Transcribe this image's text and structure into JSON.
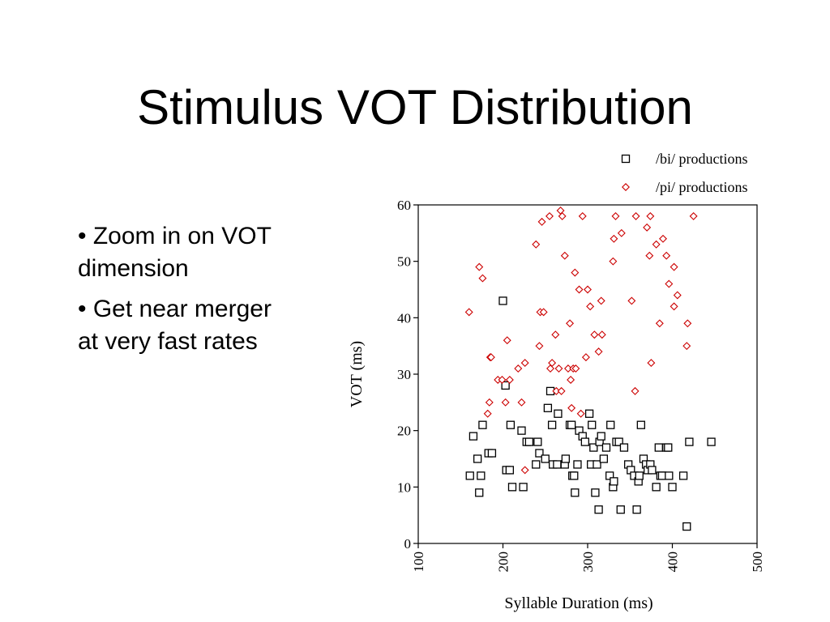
{
  "slide": {
    "title": "Stimulus VOT Distribution",
    "bullets": [
      "• Zoom in on VOT dimension",
      "• Get near merger at very fast rates"
    ]
  },
  "chart_data": {
    "type": "scatter",
    "xlabel": "Syllable Duration (ms)",
    "ylabel": "VOT (ms)",
    "xlim": [
      100,
      500
    ],
    "ylim": [
      0,
      60
    ],
    "xticks": [
      100,
      200,
      300,
      400,
      500
    ],
    "yticks": [
      0,
      10,
      20,
      30,
      40,
      50,
      60
    ],
    "grid": false,
    "legend_position": "top-right",
    "series": [
      {
        "name": "/bi/ productions",
        "marker": "square",
        "color": "#000000",
        "points": [
          [
            161,
            12
          ],
          [
            165,
            19
          ],
          [
            170,
            15
          ],
          [
            172,
            9
          ],
          [
            174,
            12
          ],
          [
            176,
            21
          ],
          [
            183,
            16
          ],
          [
            187,
            16
          ],
          [
            200,
            43
          ],
          [
            203,
            28
          ],
          [
            204,
            13
          ],
          [
            208,
            13
          ],
          [
            209,
            21
          ],
          [
            211,
            10
          ],
          [
            224,
            10
          ],
          [
            222,
            20
          ],
          [
            228,
            18
          ],
          [
            231,
            18
          ],
          [
            239,
            14
          ],
          [
            241,
            18
          ],
          [
            243,
            16
          ],
          [
            250,
            15
          ],
          [
            253,
            24
          ],
          [
            256,
            27
          ],
          [
            258,
            21
          ],
          [
            259,
            14
          ],
          [
            264,
            14
          ],
          [
            265,
            23
          ],
          [
            273,
            14
          ],
          [
            274,
            15
          ],
          [
            279,
            21
          ],
          [
            281,
            21
          ],
          [
            282,
            12
          ],
          [
            284,
            12
          ],
          [
            285,
            9
          ],
          [
            288,
            14
          ],
          [
            290,
            20
          ],
          [
            294,
            19
          ],
          [
            297,
            18
          ],
          [
            302,
            23
          ],
          [
            304,
            14
          ],
          [
            305,
            21
          ],
          [
            307,
            17
          ],
          [
            309,
            9
          ],
          [
            311,
            14
          ],
          [
            313,
            6
          ],
          [
            314,
            18
          ],
          [
            316,
            19
          ],
          [
            319,
            15
          ],
          [
            322,
            17
          ],
          [
            326,
            12
          ],
          [
            327,
            21
          ],
          [
            330,
            10
          ],
          [
            331,
            11
          ],
          [
            334,
            18
          ],
          [
            337,
            18
          ],
          [
            339,
            6
          ],
          [
            343,
            17
          ],
          [
            348,
            14
          ],
          [
            351,
            13
          ],
          [
            355,
            12
          ],
          [
            358,
            6
          ],
          [
            360,
            11
          ],
          [
            361,
            12
          ],
          [
            363,
            21
          ],
          [
            366,
            15
          ],
          [
            369,
            14
          ],
          [
            371,
            13
          ],
          [
            374,
            14
          ],
          [
            376,
            13
          ],
          [
            381,
            10
          ],
          [
            384,
            17
          ],
          [
            386,
            12
          ],
          [
            388,
            12
          ],
          [
            393,
            17
          ],
          [
            395,
            17
          ],
          [
            396,
            12
          ],
          [
            400,
            10
          ],
          [
            413,
            12
          ],
          [
            417,
            3
          ],
          [
            420,
            18
          ],
          [
            446,
            18
          ]
        ]
      },
      {
        "name": "/pi/ productions",
        "marker": "diamond",
        "color": "#cc0000",
        "points": [
          [
            160,
            41
          ],
          [
            172,
            49
          ],
          [
            176,
            47
          ],
          [
            182,
            23
          ],
          [
            184,
            25
          ],
          [
            185,
            33
          ],
          [
            186,
            33
          ],
          [
            194,
            29
          ],
          [
            199,
            29
          ],
          [
            203,
            25
          ],
          [
            205,
            36
          ],
          [
            208,
            29
          ],
          [
            218,
            31
          ],
          [
            222,
            25
          ],
          [
            226,
            32
          ],
          [
            226,
            13
          ],
          [
            239,
            53
          ],
          [
            243,
            35
          ],
          [
            244,
            41
          ],
          [
            246,
            57
          ],
          [
            248,
            41
          ],
          [
            255,
            58
          ],
          [
            256,
            31
          ],
          [
            258,
            32
          ],
          [
            262,
            37
          ],
          [
            263,
            27
          ],
          [
            266,
            31
          ],
          [
            268,
            59
          ],
          [
            269,
            27
          ],
          [
            270,
            58
          ],
          [
            273,
            51
          ],
          [
            277,
            31
          ],
          [
            279,
            39
          ],
          [
            280,
            29
          ],
          [
            281,
            24
          ],
          [
            283,
            31
          ],
          [
            285,
            48
          ],
          [
            286,
            31
          ],
          [
            290,
            45
          ],
          [
            292,
            23
          ],
          [
            294,
            58
          ],
          [
            298,
            33
          ],
          [
            300,
            45
          ],
          [
            303,
            42
          ],
          [
            308,
            37
          ],
          [
            313,
            34
          ],
          [
            316,
            43
          ],
          [
            317,
            37
          ],
          [
            330,
            50
          ],
          [
            331,
            54
          ],
          [
            333,
            58
          ],
          [
            340,
            55
          ],
          [
            352,
            43
          ],
          [
            356,
            27
          ],
          [
            357,
            58
          ],
          [
            370,
            56
          ],
          [
            373,
            51
          ],
          [
            374,
            58
          ],
          [
            375,
            32
          ],
          [
            381,
            53
          ],
          [
            385,
            39
          ],
          [
            389,
            54
          ],
          [
            393,
            51
          ],
          [
            396,
            46
          ],
          [
            402,
            42
          ],
          [
            402,
            49
          ],
          [
            406,
            44
          ],
          [
            417,
            35
          ],
          [
            418,
            39
          ],
          [
            425,
            58
          ]
        ]
      }
    ]
  }
}
